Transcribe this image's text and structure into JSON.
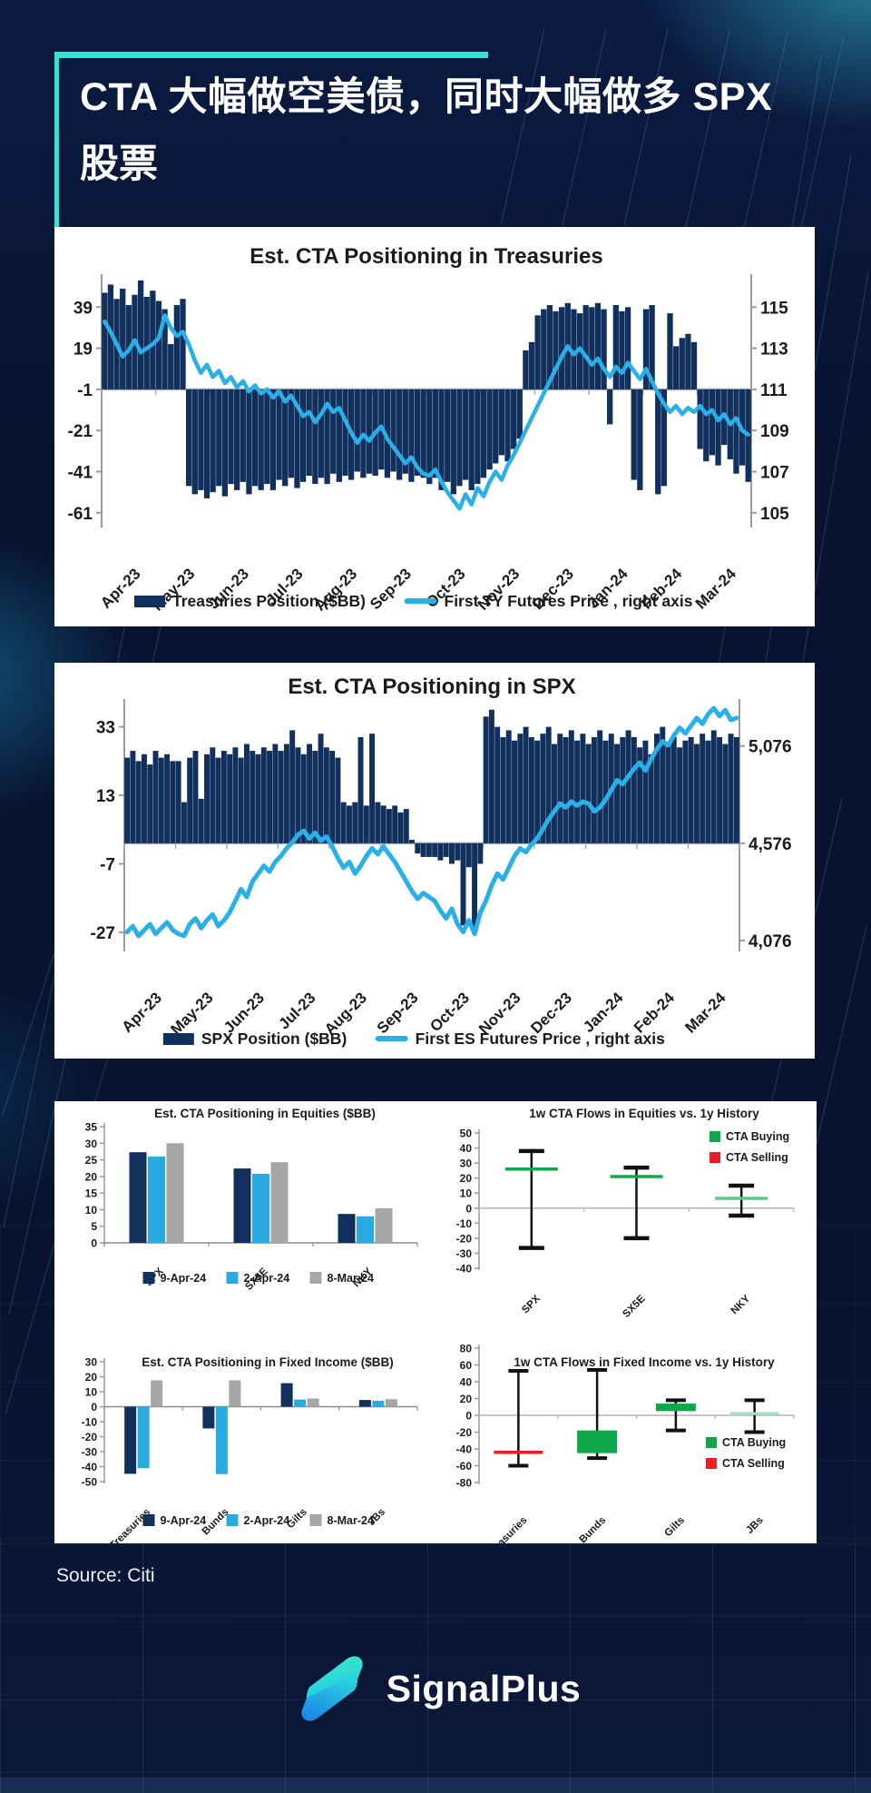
{
  "page": {
    "title_line1": "CTA 大幅做空美债，同时大幅做多 SPX",
    "title_line2": "股票",
    "source": "Source: Citi",
    "brand": "SignalPlus",
    "accent_color": "#35e2d3"
  },
  "colors": {
    "navy_bar": "#12305e",
    "line_blue": "#29b0e8",
    "light_blue_bar": "#29abe2",
    "gray_bar": "#a6a6a6",
    "green": "#10a64a",
    "pale_green": "#a9dcc3",
    "red": "#ec1c24",
    "axis_gray": "#9b9b9b",
    "text": "#1b1b1b"
  },
  "chart_data": [
    {
      "type": "combo_bar_line",
      "title": "Est. CTA Positioning in Treasuries",
      "x_labels": [
        "Apr-23",
        "May-23",
        "Jun-23",
        "Jul-23",
        "Aug-23",
        "Sep-23",
        "Oct-23",
        "Nov-23",
        "Dec-23",
        "Jan-24",
        "Feb-24",
        "Mar-24"
      ],
      "left_ticks": [
        39,
        19,
        -1,
        -21,
        -41,
        -61
      ],
      "left_ylim": [
        -65.5,
        51.5
      ],
      "right_tick_labels": [
        "115",
        "113",
        "111",
        "109",
        "107",
        "105"
      ],
      "right_tick_values": [
        115,
        113,
        111,
        109,
        107,
        105
      ],
      "right_ylim": [
        104.55,
        116.25
      ],
      "baseline": -1,
      "bar_series": {
        "name": "Treasuries Position ($BB)",
        "color": "#12305e",
        "values": [
          46,
          50,
          43,
          48,
          40,
          45,
          52,
          44,
          47,
          42,
          38,
          21,
          40,
          43,
          -48,
          -52,
          -50,
          -54,
          -51,
          -48,
          -53,
          -47,
          -50,
          -46,
          -52,
          -48,
          -50,
          -47,
          -50,
          -45,
          -48,
          -44,
          -49,
          -46,
          -43,
          -47,
          -44,
          -47,
          -42,
          -46,
          -43,
          -45,
          -41,
          -44,
          -42,
          -43,
          -40,
          -44,
          -41,
          -45,
          -42,
          -46,
          -43,
          -44,
          -47,
          -44,
          -50,
          -46,
          -52,
          -48,
          -45,
          -50,
          -47,
          -44,
          -40,
          -37,
          -33,
          -36,
          -30,
          -25,
          18,
          22,
          35,
          38,
          40,
          37,
          39,
          41,
          38,
          36,
          40,
          39,
          41,
          38,
          -18,
          40,
          37,
          39,
          -45,
          -50,
          38,
          40,
          -52,
          -48,
          36,
          20,
          24,
          26,
          22,
          -30,
          -36,
          -33,
          -38,
          -28,
          -35,
          -42,
          -38,
          -46
        ]
      },
      "line_series": {
        "name": "First TY Futures Price , right axis",
        "color": "#29b0e8",
        "axis": "right",
        "values": [
          114.3,
          113.8,
          113.2,
          112.6,
          112.9,
          113.4,
          112.8,
          113.0,
          113.2,
          113.5,
          114.6,
          114.0,
          113.6,
          113.8,
          113.2,
          112.4,
          111.8,
          112.2,
          111.6,
          111.9,
          111.3,
          111.6,
          111.1,
          111.4,
          110.9,
          111.2,
          110.8,
          111.0,
          110.6,
          110.9,
          110.4,
          110.7,
          110.2,
          109.7,
          109.9,
          109.4,
          109.8,
          110.3,
          109.9,
          110.1,
          109.5,
          108.9,
          108.4,
          108.8,
          108.5,
          108.9,
          109.2,
          108.6,
          108.2,
          107.8,
          107.4,
          107.7,
          107.2,
          106.9,
          106.8,
          107.1,
          106.5,
          106.0,
          105.6,
          105.2,
          105.9,
          105.4,
          106.2,
          105.8,
          106.5,
          107.0,
          106.6,
          107.3,
          107.8,
          108.4,
          109.0,
          109.6,
          110.2,
          110.8,
          111.4,
          112.0,
          112.6,
          113.1,
          112.7,
          113.0,
          112.6,
          112.2,
          112.5,
          112.0,
          111.6,
          112.1,
          111.8,
          112.3,
          111.9,
          111.5,
          112.0,
          111.4,
          110.8,
          110.3,
          109.9,
          110.2,
          109.8,
          110.1,
          109.9,
          110.2,
          109.8,
          110.0,
          109.5,
          109.8,
          109.3,
          109.6,
          109.0,
          108.8
        ]
      }
    },
    {
      "type": "combo_bar_line",
      "title": "Est. CTA Positioning in SPX",
      "x_labels": [
        "Apr-23",
        "May-23",
        "Jun-23",
        "Jul-23",
        "Aug-23",
        "Sep-23",
        "Oct-23",
        "Nov-23",
        "Dec-23",
        "Jan-24",
        "Feb-24",
        "Mar-24"
      ],
      "left_ticks": [
        33,
        13,
        -7,
        -27
      ],
      "left_ylim": [
        -31,
        39
      ],
      "right_tick_labels": [
        "5,076",
        "4,576",
        "4,076"
      ],
      "right_tick_values": [
        5076,
        4576,
        4076
      ],
      "right_ylim": [
        4048,
        5280
      ],
      "baseline": -1,
      "bar_series": {
        "name": "SPX Position ($BB)",
        "color": "#12305e",
        "values": [
          24,
          26,
          23,
          25,
          22,
          26,
          24,
          25,
          23,
          23,
          11,
          24,
          26,
          12,
          25,
          27,
          24,
          26,
          25,
          27,
          24,
          28,
          26,
          25,
          27,
          26,
          28,
          26,
          28,
          32,
          27,
          25,
          28,
          26,
          31,
          27,
          26,
          24,
          11,
          10,
          11,
          30,
          10,
          31,
          11,
          10,
          9,
          10,
          8,
          9,
          0,
          -4,
          -5,
          -5,
          -5,
          -6,
          -5,
          -7,
          -6,
          -25,
          -8,
          -27,
          -7,
          36,
          38,
          33,
          30,
          32,
          29,
          31,
          33,
          30,
          29,
          31,
          33,
          28,
          31,
          30,
          32,
          29,
          31,
          28,
          30,
          32,
          29,
          31,
          28,
          30,
          32,
          30,
          27,
          29,
          25,
          31,
          33,
          28,
          30,
          27,
          29,
          30,
          28,
          31,
          29,
          32,
          30,
          28,
          31,
          30
        ]
      },
      "line_series": {
        "name": "First ES Futures Price , right axis",
        "color": "#29b0e8",
        "axis": "right",
        "values": [
          4120,
          4150,
          4100,
          4130,
          4160,
          4110,
          4140,
          4170,
          4130,
          4110,
          4100,
          4160,
          4190,
          4140,
          4180,
          4210,
          4150,
          4180,
          4220,
          4280,
          4340,
          4300,
          4380,
          4420,
          4460,
          4430,
          4480,
          4510,
          4550,
          4580,
          4620,
          4640,
          4600,
          4630,
          4590,
          4610,
          4560,
          4500,
          4450,
          4480,
          4420,
          4460,
          4510,
          4550,
          4520,
          4560,
          4520,
          4480,
          4430,
          4380,
          4330,
          4290,
          4320,
          4300,
          4280,
          4230,
          4190,
          4240,
          4160,
          4120,
          4180,
          4110,
          4220,
          4280,
          4360,
          4420,
          4390,
          4450,
          4510,
          4550,
          4530,
          4570,
          4600,
          4650,
          4700,
          4740,
          4780,
          4760,
          4790,
          4770,
          4790,
          4780,
          4740,
          4760,
          4800,
          4850,
          4900,
          4880,
          4920,
          4960,
          4990,
          4950,
          5010,
          5060,
          5100,
          5080,
          5130,
          5170,
          5140,
          5180,
          5220,
          5190,
          5240,
          5270,
          5230,
          5260,
          5210,
          5220
        ]
      }
    },
    {
      "type": "grouped_bar",
      "title": "Est. CTA Positioning in Equities ($BB)",
      "categories": [
        "SPX",
        "SX5E",
        "NKY"
      ],
      "series": [
        {
          "name": "9-Apr-24",
          "color": "#12305e",
          "values": [
            27.3,
            22.4,
            8.7
          ]
        },
        {
          "name": "2-Apr-24",
          "color": "#29abe2",
          "values": [
            26.0,
            20.8,
            8.0
          ]
        },
        {
          "name": "8-Mar-24",
          "color": "#a6a6a6",
          "values": [
            30.0,
            24.3,
            10.4
          ]
        }
      ],
      "yticks": [
        35,
        30,
        25,
        20,
        15,
        10,
        5,
        0
      ],
      "ylim": [
        0,
        35
      ]
    },
    {
      "type": "range",
      "title": "1w CTA Flows in Equities vs. 1y History",
      "categories": [
        "SPX",
        "SX5E",
        "NKY"
      ],
      "whiskers": [
        [
          -26.5,
          38
        ],
        [
          -20,
          27
        ],
        [
          -5,
          15
        ]
      ],
      "markers": [
        {
          "type": "line",
          "value": 26,
          "color": "#10a64a"
        },
        {
          "type": "line",
          "value": 21,
          "color": "#10a64a"
        },
        {
          "type": "line",
          "value": 6.5,
          "color": "#5cc88e"
        }
      ],
      "yticks": [
        50,
        40,
        30,
        20,
        10,
        0,
        -10,
        -20,
        -30,
        -40
      ],
      "ylim": [
        -40,
        50
      ],
      "legend": [
        {
          "label": "CTA Buying",
          "color": "#10a64a"
        },
        {
          "label": "CTA Selling",
          "color": "#ec1c24"
        }
      ],
      "legend_pos": "top-right"
    },
    {
      "type": "grouped_bar",
      "title": "Est. CTA Positioning in Fixed Income ($BB)",
      "categories": [
        "Treasuries",
        "Bunds",
        "Gilts",
        "JBs"
      ],
      "series": [
        {
          "name": "9-Apr-24",
          "color": "#12305e",
          "values": [
            -44.8,
            -14.5,
            15.7,
            4.5
          ]
        },
        {
          "name": "2-Apr-24",
          "color": "#29abe2",
          "values": [
            -41.0,
            -45.0,
            4.8,
            4.0
          ]
        },
        {
          "name": "8-Mar-24",
          "color": "#a6a6a6",
          "values": [
            17.6,
            17.6,
            5.5,
            5.0
          ]
        }
      ],
      "yticks": [
        30,
        20,
        10,
        0,
        -10,
        -20,
        -30,
        -40,
        -50
      ],
      "ylim": [
        -50,
        30
      ]
    },
    {
      "type": "range",
      "title": "1w CTA Flows in Fixed Income vs. 1y History",
      "categories": [
        "Treasuries",
        "Bunds",
        "Gilts",
        "JBs"
      ],
      "whiskers": [
        [
          -60,
          53
        ],
        [
          -51,
          54
        ],
        [
          -18,
          18
        ],
        [
          -20,
          18
        ]
      ],
      "markers": [
        {
          "type": "line",
          "value": -44,
          "color": "#ec1c24"
        },
        {
          "type": "box",
          "from": -45,
          "to": -18,
          "color": "#10a64a"
        },
        {
          "type": "box",
          "from": 5,
          "to": 14,
          "color": "#10a64a"
        },
        {
          "type": "line",
          "value": 2,
          "color": "#a9dcc3"
        }
      ],
      "yticks": [
        80,
        60,
        40,
        20,
        0,
        -20,
        -40,
        -60,
        -80
      ],
      "ylim": [
        -80,
        80
      ],
      "legend": [
        {
          "label": "CTA Buying",
          "color": "#10a64a"
        },
        {
          "label": "CTA Selling",
          "color": "#ec1c24"
        }
      ],
      "legend_pos": "mid-right"
    }
  ]
}
